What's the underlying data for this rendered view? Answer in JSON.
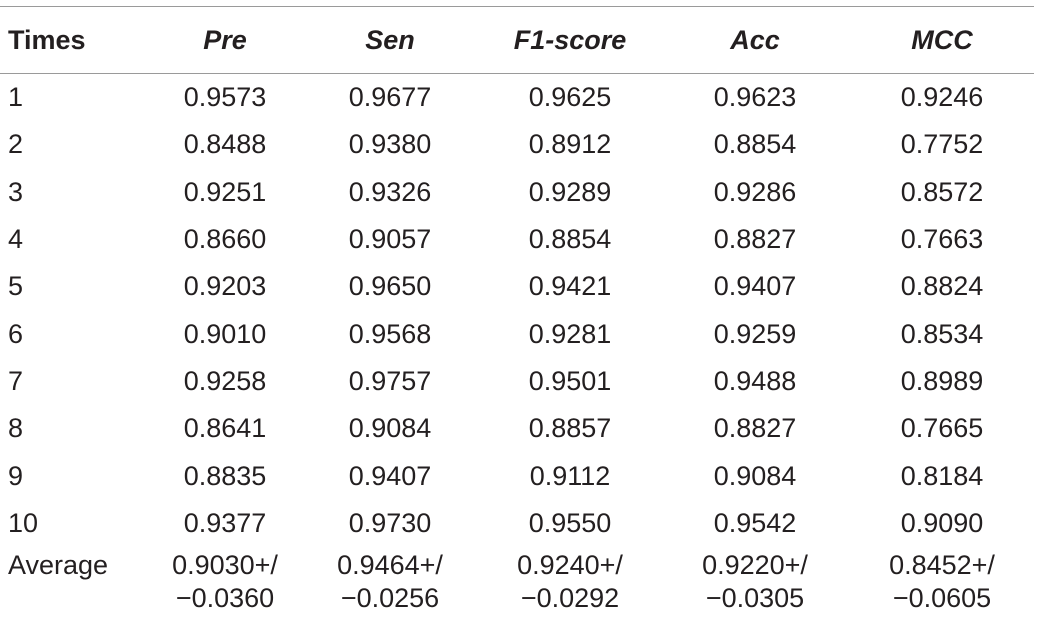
{
  "table": {
    "headers": [
      "Times",
      "Pre",
      "Sen",
      "F1-score",
      "Acc",
      "MCC"
    ],
    "rows": [
      [
        "1",
        "0.9573",
        "0.9677",
        "0.9625",
        "0.9623",
        "0.9246"
      ],
      [
        "2",
        "0.8488",
        "0.9380",
        "0.8912",
        "0.8854",
        "0.7752"
      ],
      [
        "3",
        "0.9251",
        "0.9326",
        "0.9289",
        "0.9286",
        "0.8572"
      ],
      [
        "4",
        "0.8660",
        "0.9057",
        "0.8854",
        "0.8827",
        "0.7663"
      ],
      [
        "5",
        "0.9203",
        "0.9650",
        "0.9421",
        "0.9407",
        "0.8824"
      ],
      [
        "6",
        "0.9010",
        "0.9568",
        "0.9281",
        "0.9259",
        "0.8534"
      ],
      [
        "7",
        "0.9258",
        "0.9757",
        "0.9501",
        "0.9488",
        "0.8989"
      ],
      [
        "8",
        "0.8641",
        "0.9084",
        "0.8857",
        "0.8827",
        "0.7665"
      ],
      [
        "9",
        "0.8835",
        "0.9407",
        "0.9112",
        "0.9084",
        "0.8184"
      ],
      [
        "10",
        "0.9377",
        "0.9730",
        "0.9550",
        "0.9542",
        "0.9090"
      ]
    ],
    "average": {
      "label": "Average",
      "values": [
        [
          "0.9030+/",
          "−0.0360"
        ],
        [
          "0.9464+/",
          "−0.0256"
        ],
        [
          "0.9240+/",
          "−0.0292"
        ],
        [
          "0.9220+/",
          "−0.0305"
        ],
        [
          "0.8452+/",
          "−0.0605"
        ]
      ]
    }
  }
}
